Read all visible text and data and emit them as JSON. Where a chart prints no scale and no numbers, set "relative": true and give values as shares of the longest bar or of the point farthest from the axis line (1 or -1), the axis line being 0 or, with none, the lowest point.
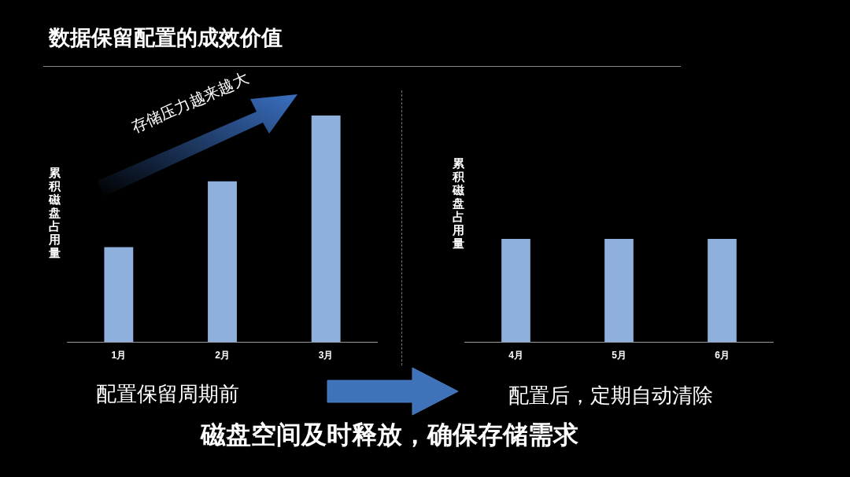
{
  "chart_data": [
    {
      "type": "bar",
      "title": "数据保留配置的成效价值",
      "ylabel": "累积磁盘占用量",
      "categories": [
        "1月",
        "2月",
        "3月"
      ],
      "values": [
        0.42,
        0.71,
        1
      ],
      "color": "#8fb0dd",
      "relative": true,
      "grid": false,
      "legend": false,
      "annotations": [
        "存储压力越来越大",
        "配置保留周期前"
      ]
    },
    {
      "type": "bar",
      "ylabel": "累积磁盘占用量",
      "categories": [
        "4月",
        "5月",
        "6月"
      ],
      "values": [
        1,
        1,
        1
      ],
      "color": "#8fb0dd",
      "relative": true,
      "grid": false,
      "legend": false,
      "annotations": [
        "配置后，定期自动清除",
        "磁盘空间及时释放，确保存储需求"
      ]
    }
  ]
}
